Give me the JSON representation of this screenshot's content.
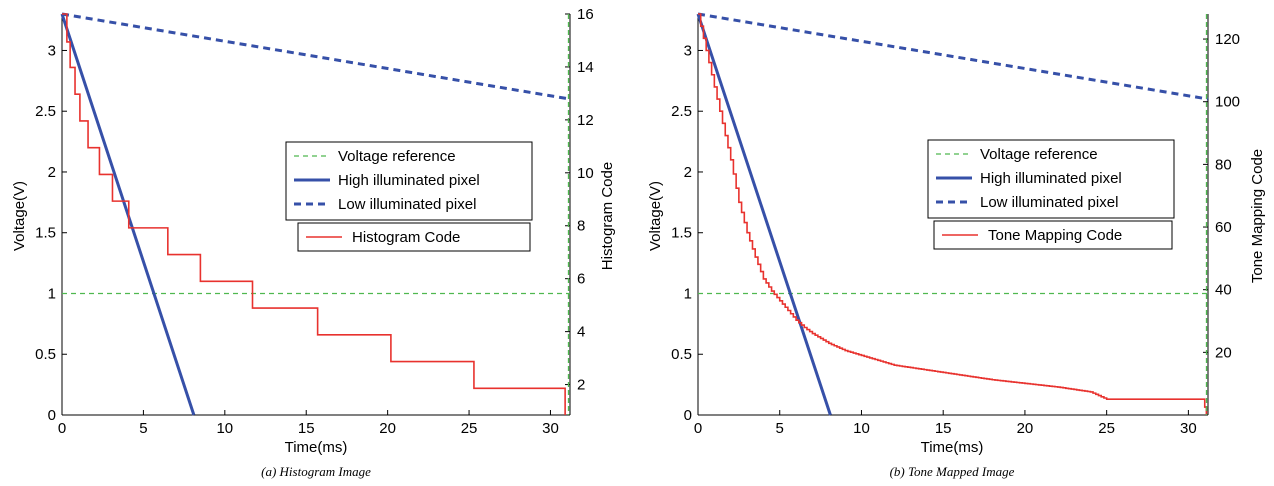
{
  "chart_data": [
    {
      "type": "line",
      "caption": "(a) Histogram Image",
      "xlabel": "Time(ms)",
      "ylabel": "Voltage(V)",
      "y2label": "Histogram Code",
      "xlim": [
        0,
        31.2
      ],
      "ylim": [
        0,
        3.3
      ],
      "y2lim": [
        0.85,
        16
      ],
      "xticks": [
        0,
        5,
        10,
        15,
        20,
        25,
        30
      ],
      "yticks": [
        0,
        0.5,
        1,
        1.5,
        2,
        2.5,
        3
      ],
      "y2ticks": [
        2,
        4,
        6,
        8,
        10,
        12,
        14,
        16
      ],
      "grid": false,
      "legend_entries": [
        "Voltage reference",
        "High illuminated pixel",
        "Low illuminated pixel"
      ],
      "legend2_entries": [
        "Histogram Code"
      ],
      "colors": {
        "reference": "#4fb84f",
        "high": "#3650a8",
        "low": "#3650a8",
        "code": "#e8322e"
      },
      "series": [
        {
          "name": "Voltage reference",
          "axis": "left",
          "style": "dashed",
          "x": [
            0,
            31.2
          ],
          "y": [
            1,
            1
          ]
        },
        {
          "name": "High illuminated pixel",
          "axis": "left",
          "style": "solid",
          "x": [
            0,
            8.1
          ],
          "y": [
            3.3,
            0
          ]
        },
        {
          "name": "Low illuminated pixel",
          "axis": "left",
          "style": "dashed",
          "x": [
            0,
            31.2
          ],
          "y": [
            3.3,
            2.6
          ]
        },
        {
          "name": "Histogram Code",
          "axis": "left",
          "style": "step",
          "x": [
            0,
            0.3,
            0.5,
            0.8,
            1.1,
            1.6,
            2.3,
            3.1,
            4.1,
            5.0,
            6.5,
            8.5,
            11.7,
            15.7,
            20.2,
            25.3,
            30.9,
            30.9
          ],
          "y": [
            3.3,
            3.07,
            2.86,
            2.64,
            2.42,
            2.2,
            1.98,
            1.76,
            1.54,
            1.54,
            1.32,
            1.1,
            0.88,
            0.66,
            0.44,
            0.22,
            0.22,
            0
          ]
        }
      ]
    },
    {
      "type": "line",
      "caption": "(b) Tone Mapped Image",
      "xlabel": "Time(ms)",
      "ylabel": "Voltage(V)",
      "y2label": "Tone Mapping Code",
      "xlim": [
        0,
        31.2
      ],
      "ylim": [
        0,
        3.3
      ],
      "y2lim": [
        0,
        128
      ],
      "xticks": [
        0,
        5,
        10,
        15,
        20,
        25,
        30
      ],
      "yticks": [
        0,
        0.5,
        1,
        1.5,
        2,
        2.5,
        3
      ],
      "y2ticks": [
        20,
        40,
        60,
        80,
        100,
        120
      ],
      "grid": false,
      "legend_entries": [
        "Voltage reference",
        "High illuminated pixel",
        "Low illuminated pixel"
      ],
      "legend2_entries": [
        "Tone Mapping Code"
      ],
      "colors": {
        "reference": "#4fb84f",
        "high": "#3650a8",
        "low": "#3650a8",
        "code": "#e8322e"
      },
      "series": [
        {
          "name": "Voltage reference",
          "axis": "left",
          "style": "dashed",
          "x": [
            0,
            31.2
          ],
          "y": [
            1,
            1
          ]
        },
        {
          "name": "High illuminated pixel",
          "axis": "left",
          "style": "solid",
          "x": [
            0,
            8.1
          ],
          "y": [
            3.3,
            0
          ]
        },
        {
          "name": "Low illuminated pixel",
          "axis": "left",
          "style": "dashed",
          "x": [
            0,
            31.2
          ],
          "y": [
            3.3,
            2.6
          ]
        },
        {
          "name": "Tone Mapping Code",
          "axis": "left",
          "style": "fine-step",
          "x": [
            0,
            0.5,
            1,
            1.5,
            2,
            2.5,
            3,
            3.5,
            4,
            4.5,
            5,
            5.5,
            6,
            6.5,
            7,
            8,
            9,
            10,
            11,
            12,
            14,
            16,
            18,
            20,
            22,
            24,
            25,
            28,
            30.9,
            31.1
          ],
          "y": [
            3.3,
            3.0,
            2.7,
            2.4,
            2.1,
            1.75,
            1.5,
            1.3,
            1.12,
            1.02,
            0.94,
            0.86,
            0.78,
            0.72,
            0.67,
            0.59,
            0.53,
            0.49,
            0.45,
            0.41,
            0.37,
            0.33,
            0.29,
            0.26,
            0.23,
            0.19,
            0.13,
            0.13,
            0.13,
            0
          ]
        }
      ]
    }
  ]
}
